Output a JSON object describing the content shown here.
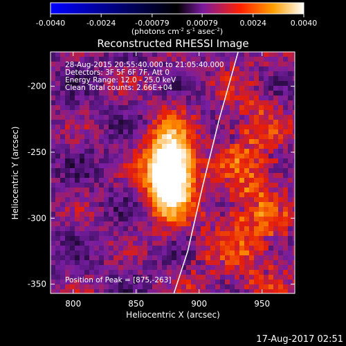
{
  "colorbar": {
    "ticks": [
      "-0.0040",
      "-0.0024",
      "-0.00079",
      "0.00079",
      "0.0024",
      "0.0040"
    ],
    "units_main": "(photons cm",
    "units_exp1": "-2",
    "units_mid": " s",
    "units_exp2": "-1",
    "units_end": " asec",
    "units_exp3": "-2",
    "units_close": ")",
    "range": [
      -0.004,
      0.004
    ],
    "colors": [
      "#0000ff",
      "#000000",
      "#7a1aa0",
      "#ff2000",
      "#ffa000",
      "#ffffff"
    ]
  },
  "chart_data": {
    "type": "heatmap",
    "title": "Reconstructed RHESSI Image",
    "xlabel": "Heliocentric X (arcsec)",
    "ylabel": "Heliocentric Y (arcsec)",
    "x_ticks": [
      "800",
      "850",
      "900",
      "950"
    ],
    "x_tick_values": [
      800,
      850,
      900,
      950
    ],
    "y_ticks": [
      "-200",
      "-250",
      "-300",
      "-350"
    ],
    "y_tick_values": [
      -200,
      -250,
      -300,
      -350
    ],
    "xlim": [
      782,
      976
    ],
    "ylim": [
      -357,
      -174
    ],
    "peak": [
      875,
      -263
    ],
    "limb_curve": [
      [
        931,
        -174
      ],
      [
        916,
        -225
      ],
      [
        903,
        -275
      ],
      [
        891,
        -325
      ],
      [
        880,
        -357
      ]
    ],
    "annotations": {
      "line1": "28-Aug-2015 20:55:40.000 to 21:05:40.000",
      "line2": "Detectors: 3F 5F 6F 7F, Att 0",
      "line3": "Energy Range: 12.0 - 25.0 keV",
      "line4": "Clean     Total counts: 2.66E+04",
      "peak_label": "Position of Peak = [875,-263]"
    }
  },
  "timestamp": "17-Aug-2017 02:51"
}
